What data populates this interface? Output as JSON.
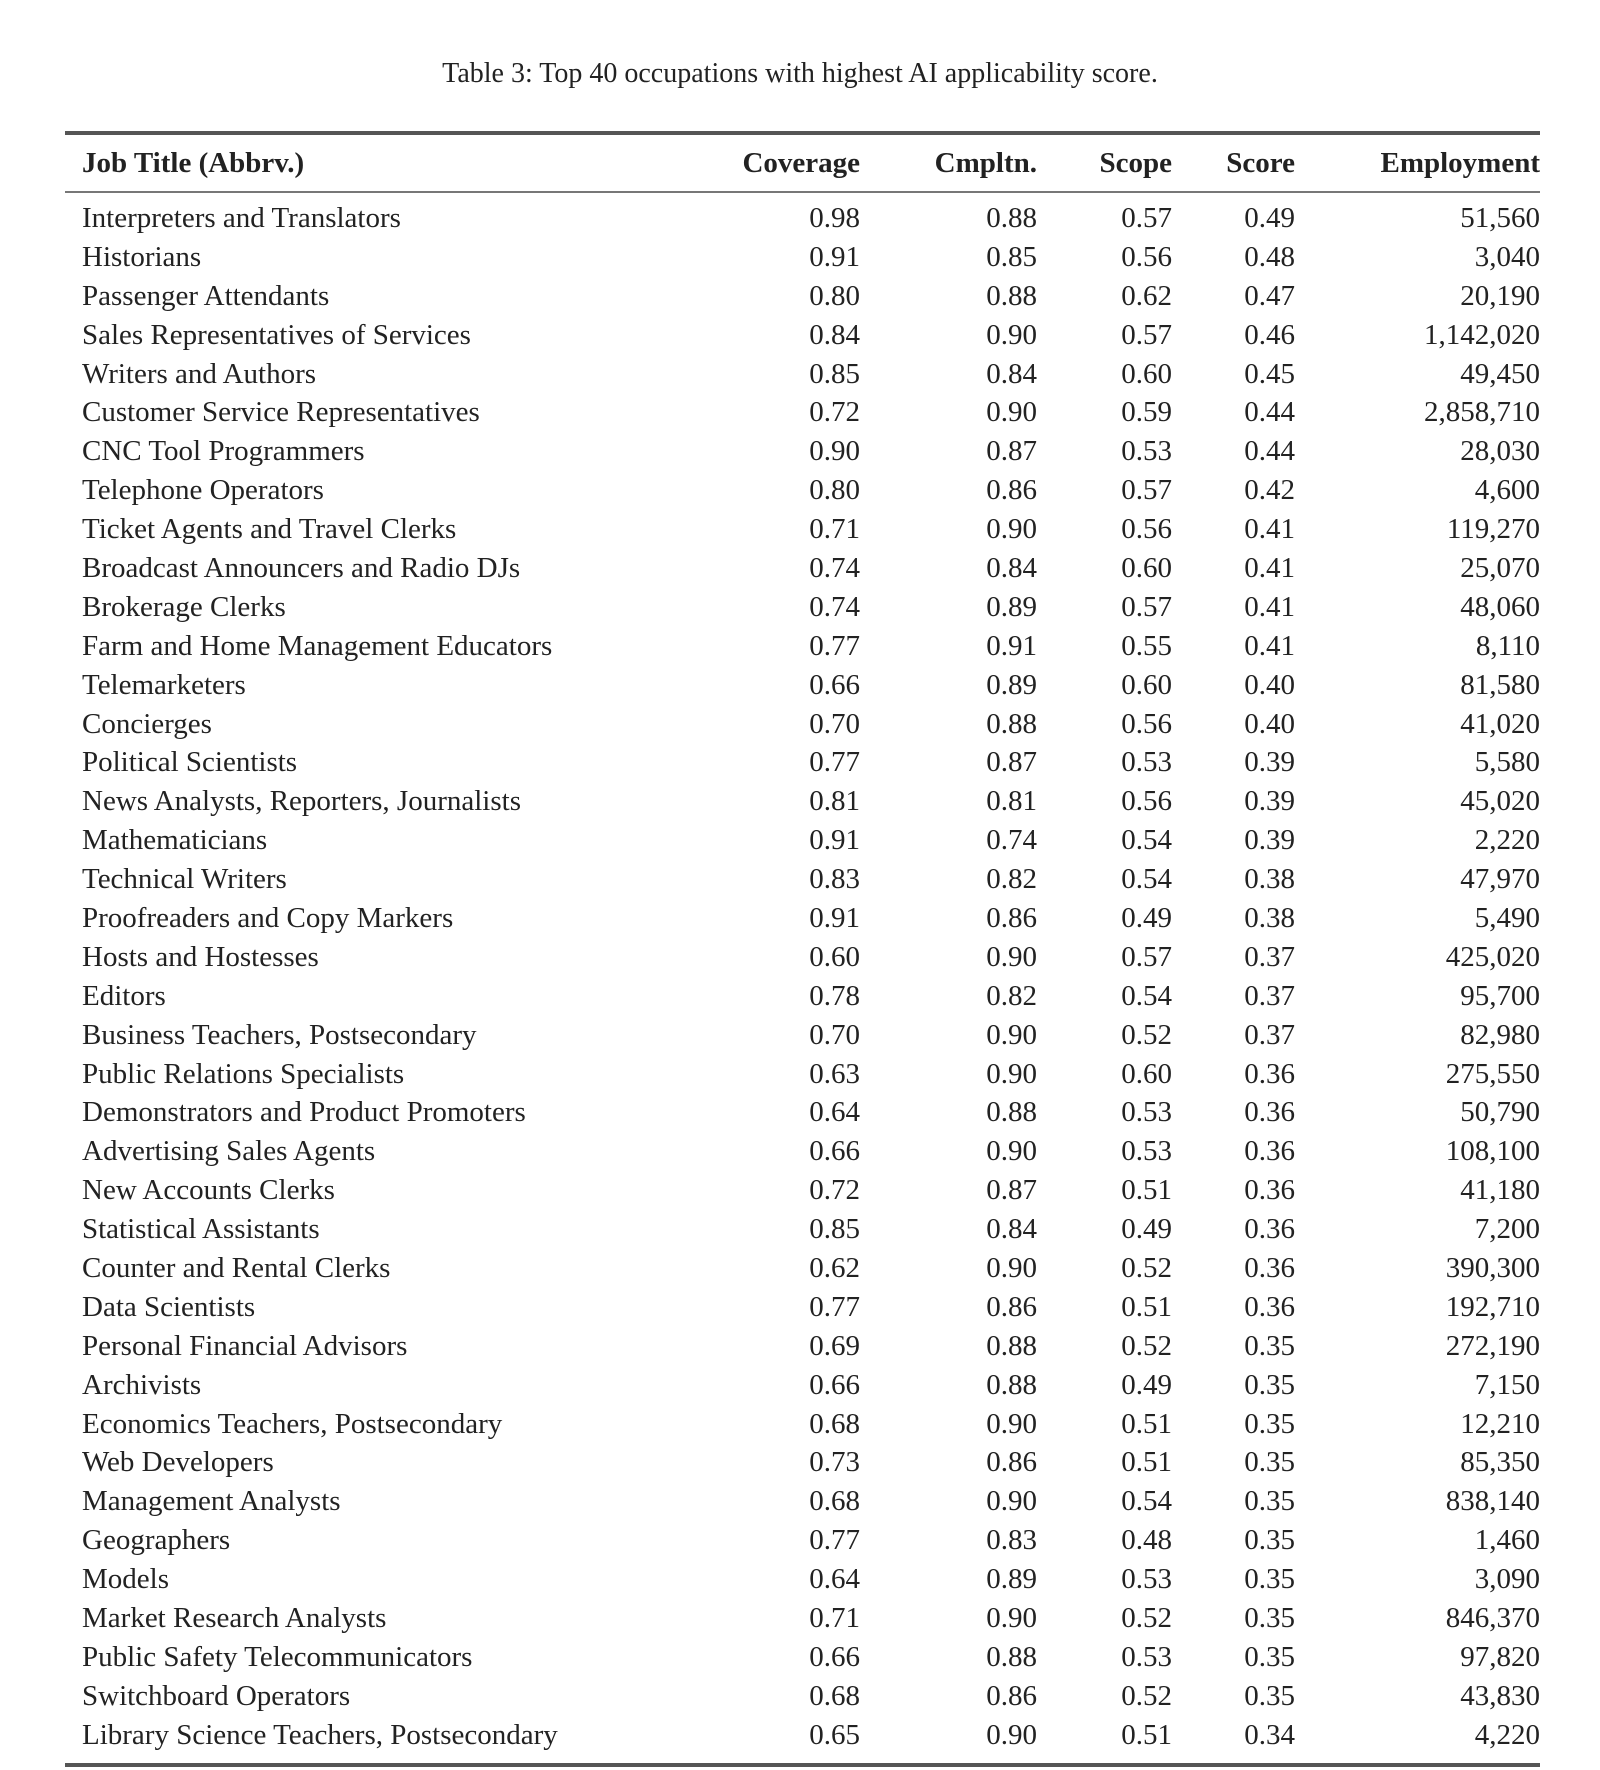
{
  "caption": "Table 3: Top 40 occupations with highest AI applicability score.",
  "table": {
    "headers": [
      "Job Title (Abbrv.)",
      "Coverage",
      "Cmpltn.",
      "Scope",
      "Score",
      "Employment"
    ],
    "rows": [
      [
        "Interpreters and Translators",
        "0.98",
        "0.88",
        "0.57",
        "0.49",
        "51,560"
      ],
      [
        "Historians",
        "0.91",
        "0.85",
        "0.56",
        "0.48",
        "3,040"
      ],
      [
        "Passenger Attendants",
        "0.80",
        "0.88",
        "0.62",
        "0.47",
        "20,190"
      ],
      [
        "Sales Representatives of Services",
        "0.84",
        "0.90",
        "0.57",
        "0.46",
        "1,142,020"
      ],
      [
        "Writers and Authors",
        "0.85",
        "0.84",
        "0.60",
        "0.45",
        "49,450"
      ],
      [
        "Customer Service Representatives",
        "0.72",
        "0.90",
        "0.59",
        "0.44",
        "2,858,710"
      ],
      [
        "CNC Tool Programmers",
        "0.90",
        "0.87",
        "0.53",
        "0.44",
        "28,030"
      ],
      [
        "Telephone Operators",
        "0.80",
        "0.86",
        "0.57",
        "0.42",
        "4,600"
      ],
      [
        "Ticket Agents and Travel Clerks",
        "0.71",
        "0.90",
        "0.56",
        "0.41",
        "119,270"
      ],
      [
        "Broadcast Announcers and Radio DJs",
        "0.74",
        "0.84",
        "0.60",
        "0.41",
        "25,070"
      ],
      [
        "Brokerage Clerks",
        "0.74",
        "0.89",
        "0.57",
        "0.41",
        "48,060"
      ],
      [
        "Farm and Home Management Educators",
        "0.77",
        "0.91",
        "0.55",
        "0.41",
        "8,110"
      ],
      [
        "Telemarketers",
        "0.66",
        "0.89",
        "0.60",
        "0.40",
        "81,580"
      ],
      [
        "Concierges",
        "0.70",
        "0.88",
        "0.56",
        "0.40",
        "41,020"
      ],
      [
        "Political Scientists",
        "0.77",
        "0.87",
        "0.53",
        "0.39",
        "5,580"
      ],
      [
        "News Analysts, Reporters, Journalists",
        "0.81",
        "0.81",
        "0.56",
        "0.39",
        "45,020"
      ],
      [
        "Mathematicians",
        "0.91",
        "0.74",
        "0.54",
        "0.39",
        "2,220"
      ],
      [
        "Technical Writers",
        "0.83",
        "0.82",
        "0.54",
        "0.38",
        "47,970"
      ],
      [
        "Proofreaders and Copy Markers",
        "0.91",
        "0.86",
        "0.49",
        "0.38",
        "5,490"
      ],
      [
        "Hosts and Hostesses",
        "0.60",
        "0.90",
        "0.57",
        "0.37",
        "425,020"
      ],
      [
        "Editors",
        "0.78",
        "0.82",
        "0.54",
        "0.37",
        "95,700"
      ],
      [
        "Business Teachers, Postsecondary",
        "0.70",
        "0.90",
        "0.52",
        "0.37",
        "82,980"
      ],
      [
        "Public Relations Specialists",
        "0.63",
        "0.90",
        "0.60",
        "0.36",
        "275,550"
      ],
      [
        "Demonstrators and Product Promoters",
        "0.64",
        "0.88",
        "0.53",
        "0.36",
        "50,790"
      ],
      [
        "Advertising Sales Agents",
        "0.66",
        "0.90",
        "0.53",
        "0.36",
        "108,100"
      ],
      [
        "New Accounts Clerks",
        "0.72",
        "0.87",
        "0.51",
        "0.36",
        "41,180"
      ],
      [
        "Statistical Assistants",
        "0.85",
        "0.84",
        "0.49",
        "0.36",
        "7,200"
      ],
      [
        "Counter and Rental Clerks",
        "0.62",
        "0.90",
        "0.52",
        "0.36",
        "390,300"
      ],
      [
        "Data Scientists",
        "0.77",
        "0.86",
        "0.51",
        "0.36",
        "192,710"
      ],
      [
        "Personal Financial Advisors",
        "0.69",
        "0.88",
        "0.52",
        "0.35",
        "272,190"
      ],
      [
        "Archivists",
        "0.66",
        "0.88",
        "0.49",
        "0.35",
        "7,150"
      ],
      [
        "Economics Teachers, Postsecondary",
        "0.68",
        "0.90",
        "0.51",
        "0.35",
        "12,210"
      ],
      [
        "Web Developers",
        "0.73",
        "0.86",
        "0.51",
        "0.35",
        "85,350"
      ],
      [
        "Management Analysts",
        "0.68",
        "0.90",
        "0.54",
        "0.35",
        "838,140"
      ],
      [
        "Geographers",
        "0.77",
        "0.83",
        "0.48",
        "0.35",
        "1,460"
      ],
      [
        "Models",
        "0.64",
        "0.89",
        "0.53",
        "0.35",
        "3,090"
      ],
      [
        "Market Research Analysts",
        "0.71",
        "0.90",
        "0.52",
        "0.35",
        "846,370"
      ],
      [
        "Public Safety Telecommunicators",
        "0.66",
        "0.88",
        "0.53",
        "0.35",
        "97,820"
      ],
      [
        "Switchboard Operators",
        "0.68",
        "0.86",
        "0.52",
        "0.35",
        "43,830"
      ],
      [
        "Library Science Teachers, Postsecondary",
        "0.65",
        "0.90",
        "0.51",
        "0.34",
        "4,220"
      ]
    ]
  }
}
